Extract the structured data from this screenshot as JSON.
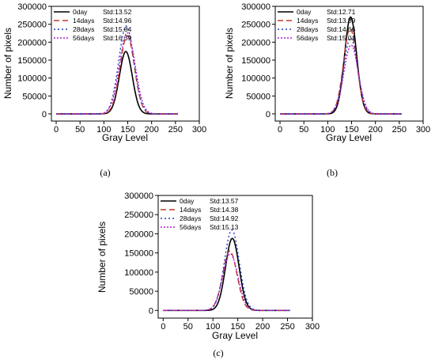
{
  "chart_data": [
    {
      "panel_label": "(a)",
      "type": "line",
      "xlabel": "Gray Level",
      "ylabel": "Number of pixels",
      "xlim": [
        -10,
        300
      ],
      "ylim": [
        -20000,
        300000
      ],
      "xticks": [
        0,
        50,
        100,
        150,
        200,
        250,
        300
      ],
      "yticks": [
        0,
        50000,
        100000,
        150000,
        200000,
        250000,
        300000
      ],
      "legend_position": "top-left",
      "grid": false,
      "series": [
        {
          "name": "0day",
          "std_label": "Std:13.52",
          "mean": 146,
          "std": 13.52,
          "peak": 174000,
          "color": "#000000",
          "dash": "solid"
        },
        {
          "name": "14days",
          "std_label": "Std:14.96",
          "mean": 149,
          "std": 14.96,
          "peak": 218000,
          "color": "#c0392b",
          "dash": "dash"
        },
        {
          "name": "28days",
          "std_label": "Std:15.84",
          "mean": 147,
          "std": 15.84,
          "peak": 245000,
          "color": "#1f3fbf",
          "dash": "dot"
        },
        {
          "name": "56days",
          "std_label": "Std:16.39",
          "mean": 149,
          "std": 16.39,
          "peak": 226000,
          "color": "#b01cd0",
          "dash": "dashdot"
        }
      ]
    },
    {
      "panel_label": "(b)",
      "type": "line",
      "xlabel": "Gray Level",
      "ylabel": "Number of pixels",
      "xlim": [
        -10,
        300
      ],
      "ylim": [
        -20000,
        300000
      ],
      "xticks": [
        0,
        50,
        100,
        150,
        200,
        250,
        300
      ],
      "yticks": [
        0,
        50000,
        100000,
        150000,
        200000,
        250000,
        300000
      ],
      "legend_position": "top-left",
      "grid": false,
      "series": [
        {
          "name": "0day",
          "std_label": "Std:12.71",
          "mean": 148,
          "std": 12.71,
          "peak": 270000,
          "color": "#000000",
          "dash": "solid"
        },
        {
          "name": "14days",
          "std_label": "Std:13.89",
          "mean": 147,
          "std": 13.89,
          "peak": 238000,
          "color": "#c0392b",
          "dash": "dash"
        },
        {
          "name": "28days",
          "std_label": "Std:14.66",
          "mean": 148,
          "std": 14.66,
          "peak": 212000,
          "color": "#1f3fbf",
          "dash": "dot"
        },
        {
          "name": "56days",
          "std_label": "Std:15.01",
          "mean": 149,
          "std": 15.01,
          "peak": 192000,
          "color": "#b01cd0",
          "dash": "dashdot"
        }
      ]
    },
    {
      "panel_label": "(c)",
      "type": "line",
      "xlabel": "Gray Level",
      "ylabel": "Number of pixels",
      "xlim": [
        -10,
        300
      ],
      "ylim": [
        -20000,
        300000
      ],
      "xticks": [
        0,
        50,
        100,
        150,
        200,
        250,
        300
      ],
      "yticks": [
        0,
        50000,
        100000,
        150000,
        200000,
        250000,
        300000
      ],
      "legend_position": "top-left",
      "grid": false,
      "series": [
        {
          "name": "0day",
          "std_label": "Std:13.57",
          "mean": 139,
          "std": 13.57,
          "peak": 188000,
          "color": "#000000",
          "dash": "solid"
        },
        {
          "name": "14days",
          "std_label": "Std:14.38",
          "mean": 134,
          "std": 14.38,
          "peak": 155000,
          "color": "#c0392b",
          "dash": "dash"
        },
        {
          "name": "28days",
          "std_label": "Std:14.92",
          "mean": 138,
          "std": 14.92,
          "peak": 210000,
          "color": "#1f3fbf",
          "dash": "dot"
        },
        {
          "name": "56days",
          "std_label": "Std:15.13",
          "mean": 135,
          "std": 15.13,
          "peak": 148000,
          "color": "#b01cd0",
          "dash": "dashdot"
        }
      ]
    }
  ]
}
